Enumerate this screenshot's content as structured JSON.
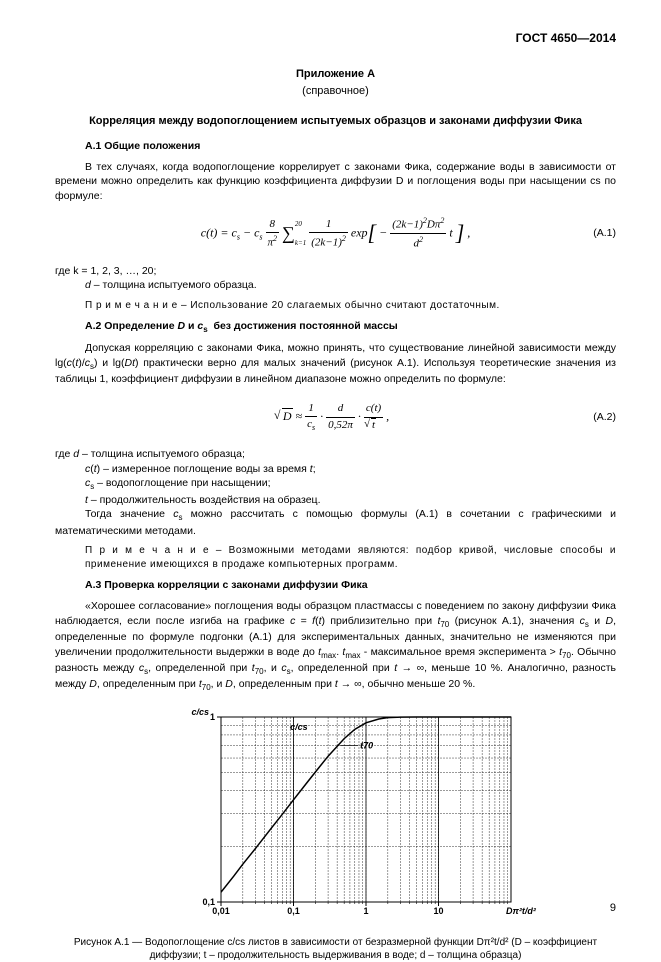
{
  "header": {
    "standard": "ГОСТ 4650—2014"
  },
  "appendix": {
    "title": "Приложение А",
    "subtitle": "(справочное)"
  },
  "main_title": "Корреляция между водопоглощением испытуемых образцов и законами диффузии Фика",
  "sections": {
    "a1": {
      "title": "А.1 Общие положения",
      "para1": "В тех случаях, когда водопоглощение  коррелирует с законами Фика, содержание воды в зависимости от времени  можно определить как функцию коэффициента диффузии D и поглощения воды при насыщении cs по формуле:",
      "formula_label": "(А.1)",
      "where_k": "где   k    = 1, 2, 3, …, 20;",
      "where_d": "d – толщина испытуемого образца.",
      "note": "П р и м е ч а н и е – Использование 20 слагаемых обычно считают достаточным."
    },
    "a2": {
      "title": "А.2 Определение D и cs  без достижения постоянной массы",
      "para1_part1": "Допуская корреляцию с законами Фика, можно принять, что существование линейной зависимости между",
      "para1_part2": "практически верно для малых значений (рисунок А.1). Используя  теоретические значения из таблицы 1, коэффициент диффузии в линейном диапазоне можно определить по формуле:",
      "formula_label": "(А.2)",
      "where_d": "где  d  – толщина испытуемого образца;",
      "where_ct": "c(t) – измеренное поглощение воды за время t;",
      "where_cs": "cs – водопоглощение при насыщении;",
      "where_t": "t   – продолжительность воздействия на образец.",
      "para2": "Тогда значение cs можно рассчитать с помощью формулы (А.1) в сочетании с графическими и математическими методами.",
      "note": "П р и м е ч а н и е – Возможными методами являются: подбор кривой, числовые способы и применение имеющихся в продаже компьютерных программ."
    },
    "a3": {
      "title": "А.3 Проверка корреляции с законами диффузии Фика",
      "para1": "«Хорошее согласование» поглощения воды образцом пластмассы с поведением по закону диффузии Фика наблюдается, если  после изгиба на графике c = f(t) приблизительно при t70 (рисунок А.1), значения cs и D, определенные по формуле подгонки (А.1) для экспериментальных данных, значительно не изменяются при увеличении продолжительности выдержки в воде до tmax. tmax - максимальное время эксперимента > t70. Обычно разность между cs, определенной при t70, и cs, определенной при t → ∞, меньше 10 %. Аналогично, разность между D, определенным при t70, и D, определенным при t → ∞, обычно меньше 20 %."
    }
  },
  "chart": {
    "type": "line",
    "y_label": "c/cs",
    "x_label": "Dπ²t/d²",
    "y_ticks": [
      "0,1",
      "1"
    ],
    "x_ticks": [
      "0,01",
      "0,1",
      "1",
      "10"
    ],
    "inner_labels": {
      "top": "c/cs",
      "mid": "t70"
    },
    "xscale": "log",
    "yscale": "log",
    "xlim": [
      0.01,
      100
    ],
    "ylim": [
      0.1,
      1
    ],
    "grid_color": "#000000",
    "line_color": "#000000",
    "background_color": "#ffffff",
    "line_width": 1.5,
    "curve_points": [
      [
        0.01,
        0.113
      ],
      [
        0.015,
        0.138
      ],
      [
        0.02,
        0.16
      ],
      [
        0.03,
        0.195
      ],
      [
        0.05,
        0.252
      ],
      [
        0.07,
        0.298
      ],
      [
        0.1,
        0.357
      ],
      [
        0.15,
        0.437
      ],
      [
        0.2,
        0.504
      ],
      [
        0.3,
        0.614
      ],
      [
        0.5,
        0.764
      ],
      [
        0.7,
        0.858
      ],
      [
        1.0,
        0.93
      ],
      [
        1.5,
        0.975
      ],
      [
        2.0,
        0.992
      ],
      [
        3.0,
        0.999
      ],
      [
        5.0,
        1.0
      ],
      [
        10.0,
        1.0
      ],
      [
        100.0,
        1.0
      ]
    ]
  },
  "figure_caption": {
    "line1": "Рисунок А.1 — Водопоглощение c/cs листов в зависимости от безразмерной функции Dπ²t/d² (D – коэффициент",
    "line2": "диффузии; t – продолжительность выдерживания в воде; d – толщина образца)"
  },
  "page_number": "9"
}
